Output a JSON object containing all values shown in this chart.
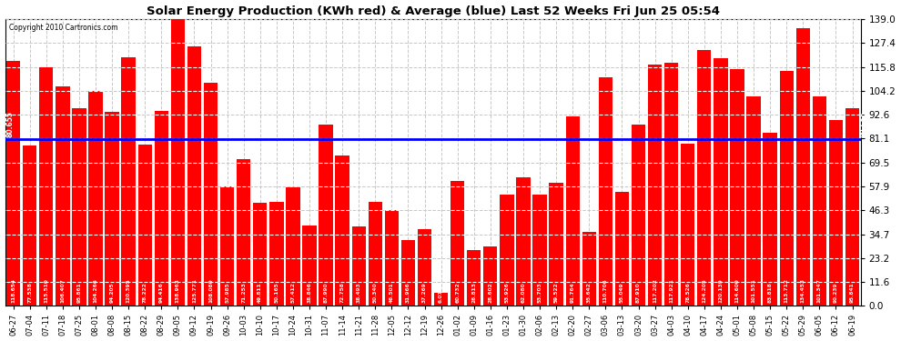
{
  "title": "Solar Energy Production (KWh red) & Average (blue) Last 52 Weeks Fri Jun 25 05:54",
  "copyright": "Copyright 2010 Cartronics.com",
  "average_value": 80.655,
  "bar_color": "#ff0000",
  "average_line_color": "#0000ff",
  "background_color": "#ffffff",
  "plot_bg_color": "#ffffff",
  "grid_color": "#c8c8c8",
  "ylim": [
    0,
    139.0
  ],
  "yticks": [
    0.0,
    11.6,
    23.2,
    34.7,
    46.3,
    57.9,
    69.5,
    81.1,
    92.6,
    104.2,
    115.8,
    127.4,
    139.0
  ],
  "categories": [
    "06-27",
    "07-04",
    "07-11",
    "07-18",
    "07-25",
    "08-01",
    "08-08",
    "08-15",
    "08-22",
    "08-29",
    "09-05",
    "09-12",
    "09-19",
    "09-26",
    "10-03",
    "10-10",
    "10-17",
    "10-24",
    "10-31",
    "11-07",
    "11-14",
    "11-21",
    "11-28",
    "12-05",
    "12-12",
    "12-19",
    "12-26",
    "01-02",
    "01-09",
    "01-16",
    "01-23",
    "01-30",
    "02-06",
    "02-13",
    "02-20",
    "02-27",
    "03-06",
    "03-13",
    "03-20",
    "03-27",
    "04-03",
    "04-10",
    "04-17",
    "04-24",
    "05-01",
    "05-08",
    "05-15",
    "05-22",
    "05-29",
    "06-05",
    "06-12",
    "06-19"
  ],
  "values": [
    118.654,
    77.538,
    115.51,
    106.407,
    95.861,
    104.266,
    94.205,
    120.395,
    78.222,
    94.416,
    138.963,
    125.771,
    108.08,
    57.985,
    71.253,
    49.811,
    50.165,
    57.412,
    38.846,
    87.99,
    72.758,
    38.493,
    50.34,
    46.501,
    31.966,
    37.269,
    6.079,
    60.732,
    26.813,
    28.602,
    53.926,
    62.08,
    53.703,
    59.522,
    91.764,
    35.642,
    110.706,
    55.049,
    87.91,
    117.202,
    117.921,
    78.526,
    124.205,
    120.139,
    114.6,
    101.551,
    83.818,
    113.712,
    134.453,
    101.347,
    90.239,
    95.841
  ]
}
